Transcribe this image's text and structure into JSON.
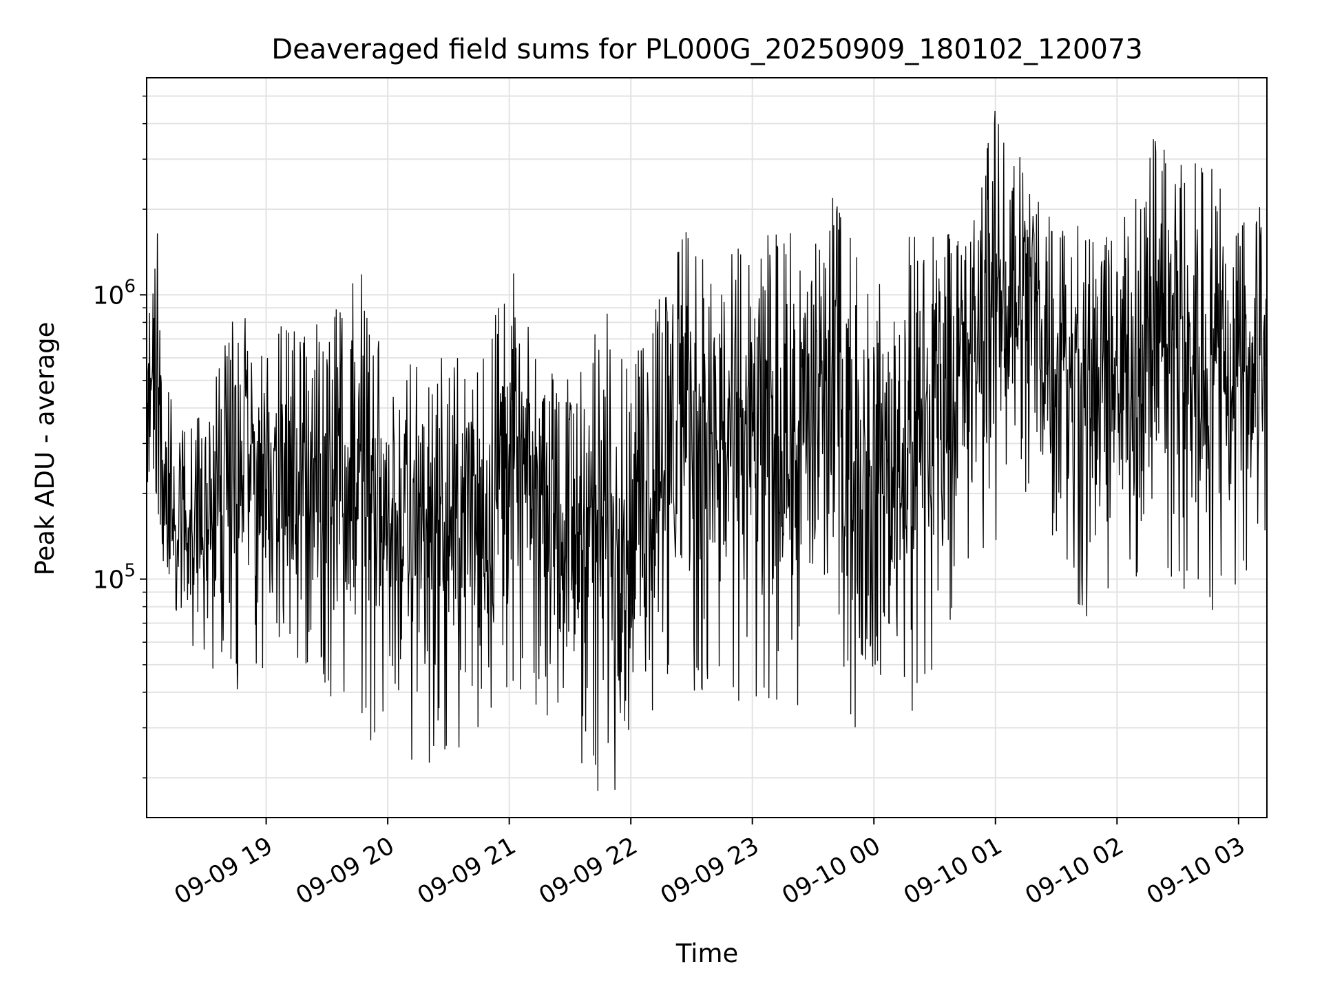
{
  "chart_data": {
    "type": "line",
    "title": "Deaveraged field sums for PL000G_20250909_180102_120073",
    "xlabel": "Time",
    "ylabel": "Peak ADU - average",
    "x_scale": "time",
    "y_scale": "log",
    "xlim": [
      "2025-09-09 18:01",
      "2025-09-10 03:14"
    ],
    "ylim": [
      14500,
      5800000
    ],
    "x_ticks": [
      "09-09 19",
      "09-09 20",
      "09-09 21",
      "09-09 22",
      "09-09 23",
      "09-10 00",
      "09-10 01",
      "09-10 02",
      "09-10 03"
    ],
    "x_tick_values": [
      "2025-09-09 19:00",
      "2025-09-09 20:00",
      "2025-09-09 21:00",
      "2025-09-09 22:00",
      "2025-09-09 23:00",
      "2025-09-10 00:00",
      "2025-09-10 01:00",
      "2025-09-10 02:00",
      "2025-09-10 03:00"
    ],
    "y_ticks": [
      {
        "label_base": "10",
        "label_exp": "5",
        "value": 100000
      },
      {
        "label_base": "10",
        "label_exp": "6",
        "value": 1000000
      }
    ],
    "grid": true,
    "line_color": "#000000",
    "series": [
      {
        "name": "",
        "envelope": [
          {
            "x": "2025-09-09 18:01",
            "low": 130000,
            "high": 800000
          },
          {
            "x": "2025-09-09 18:06",
            "low": 160000,
            "high": 2200000
          },
          {
            "x": "2025-09-09 18:10",
            "low": 70000,
            "high": 500000
          },
          {
            "x": "2025-09-09 18:20",
            "low": 55000,
            "high": 350000
          },
          {
            "x": "2025-09-09 18:30",
            "low": 50000,
            "high": 380000
          },
          {
            "x": "2025-09-09 18:45",
            "low": 40000,
            "high": 900000
          },
          {
            "x": "2025-09-09 18:55",
            "low": 45000,
            "high": 900000
          },
          {
            "x": "2025-09-09 19:10",
            "low": 55000,
            "high": 750000
          },
          {
            "x": "2025-09-09 19:30",
            "low": 40000,
            "high": 800000
          },
          {
            "x": "2025-09-09 19:45",
            "low": 30000,
            "high": 1300000
          },
          {
            "x": "2025-09-09 20:00",
            "low": 20000,
            "high": 650000
          },
          {
            "x": "2025-09-09 20:15",
            "low": 20000,
            "high": 600000
          },
          {
            "x": "2025-09-09 20:30",
            "low": 25000,
            "high": 600000
          },
          {
            "x": "2025-09-09 20:45",
            "low": 25000,
            "high": 600000
          },
          {
            "x": "2025-09-09 21:00",
            "low": 40000,
            "high": 1350000
          },
          {
            "x": "2025-09-09 21:15",
            "low": 35000,
            "high": 550000
          },
          {
            "x": "2025-09-09 21:30",
            "low": 25000,
            "high": 500000
          },
          {
            "x": "2025-09-09 21:45",
            "low": 17000,
            "high": 1000000
          },
          {
            "x": "2025-09-09 22:00",
            "low": 18000,
            "high": 500000
          },
          {
            "x": "2025-09-09 22:15",
            "low": 40000,
            "high": 1500000
          },
          {
            "x": "2025-09-09 22:30",
            "low": 40000,
            "high": 1700000
          },
          {
            "x": "2025-09-09 22:45",
            "low": 40000,
            "high": 1300000
          },
          {
            "x": "2025-09-09 23:00",
            "low": 35000,
            "high": 1600000
          },
          {
            "x": "2025-09-09 23:20",
            "low": 35000,
            "high": 1650000
          },
          {
            "x": "2025-09-09 23:40",
            "low": 40000,
            "high": 2200000
          },
          {
            "x": "2025-09-10 00:00",
            "low": 20000,
            "high": 1000000
          },
          {
            "x": "2025-09-10 00:15",
            "low": 28000,
            "high": 1600000
          },
          {
            "x": "2025-09-10 00:30",
            "low": 45000,
            "high": 1600000
          },
          {
            "x": "2025-09-10 00:45",
            "low": 100000,
            "high": 1800000
          },
          {
            "x": "2025-09-10 01:00",
            "low": 130000,
            "high": 4500000
          },
          {
            "x": "2025-09-10 01:15",
            "low": 200000,
            "high": 3700000
          },
          {
            "x": "2025-09-10 01:30",
            "low": 120000,
            "high": 2000000
          },
          {
            "x": "2025-09-10 01:45",
            "low": 65000,
            "high": 1800000
          },
          {
            "x": "2025-09-10 02:00",
            "low": 85000,
            "high": 1500000
          },
          {
            "x": "2025-09-10 02:15",
            "low": 90000,
            "high": 3700000
          },
          {
            "x": "2025-09-10 02:30",
            "low": 85000,
            "high": 2900000
          },
          {
            "x": "2025-09-10 02:45",
            "low": 75000,
            "high": 2900000
          },
          {
            "x": "2025-09-10 03:00",
            "low": 95000,
            "high": 2000000
          },
          {
            "x": "2025-09-10 03:14",
            "low": 140000,
            "high": 2500000
          }
        ]
      }
    ]
  }
}
